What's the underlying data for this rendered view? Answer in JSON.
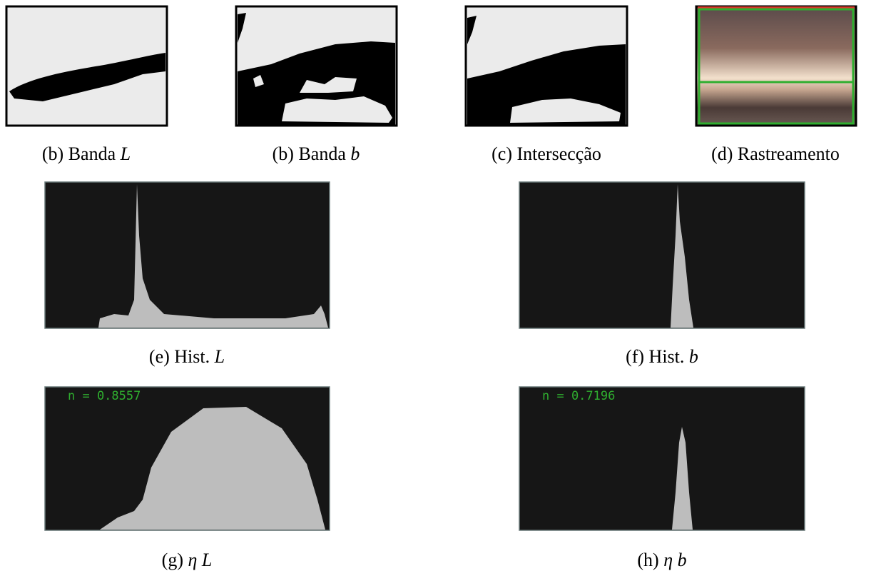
{
  "subfigures": [
    {
      "caption_label": "(b) Banda",
      "caption_var": "L"
    },
    {
      "caption_label": "(b) Banda",
      "caption_var": "b"
    },
    {
      "caption_label": "(c) Intersecção"
    },
    {
      "caption_label": "(d) Rastreamento"
    },
    {
      "caption_label": "(e) Hist.",
      "caption_var": "L"
    },
    {
      "caption_label": "(f) Hist.",
      "caption_var": "b"
    },
    {
      "caption_label": "(g)",
      "caption_var": "η L",
      "overlay_text": "n = 0.8557"
    },
    {
      "caption_label": "(h)",
      "caption_var": "η b",
      "overlay_text": "n = 0.7196"
    }
  ]
}
